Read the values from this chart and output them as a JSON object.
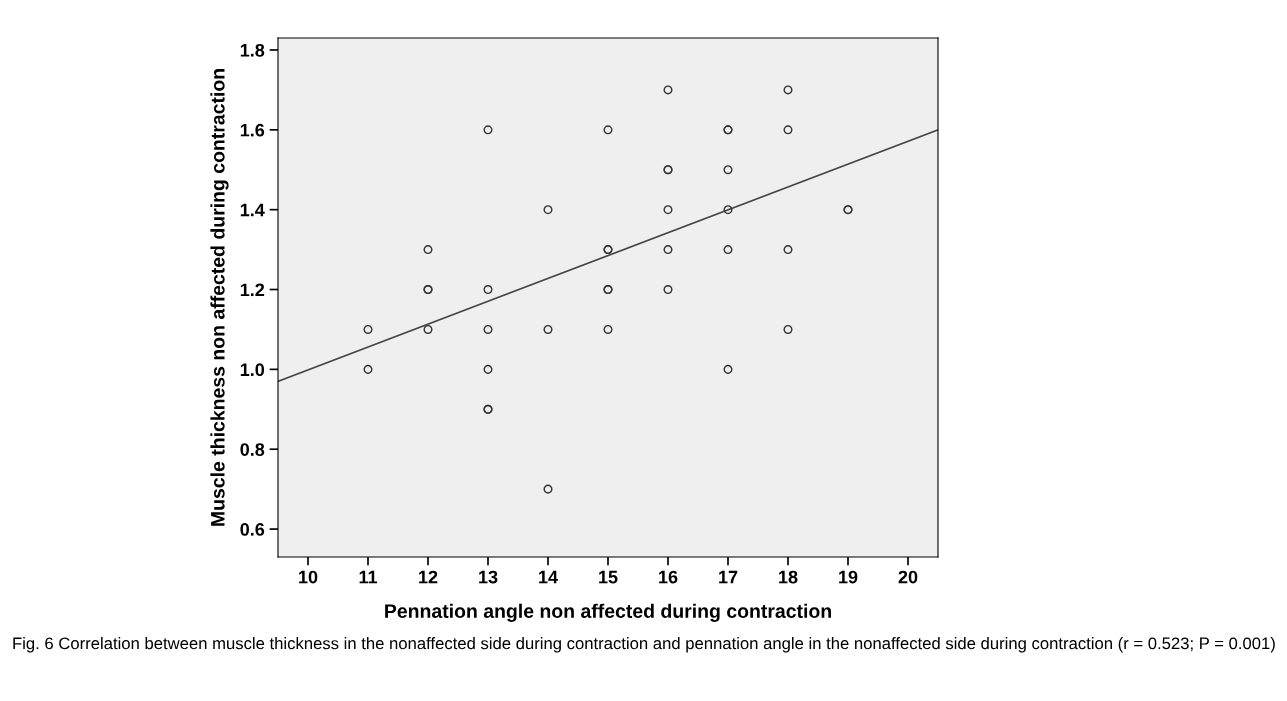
{
  "chart_data": {
    "type": "scatter",
    "xlabel": "Pennation angle non affected during contraction",
    "ylabel": "Muscle thickness non affected during contraction",
    "xlim": [
      9.5,
      20.5
    ],
    "ylim": [
      0.53,
      1.83
    ],
    "xticks": [
      10,
      11,
      12,
      13,
      14,
      15,
      16,
      17,
      18,
      19,
      20
    ],
    "yticks": [
      0.6,
      0.8,
      {
        "value": 1,
        "label": "1.0"
      },
      1.2,
      1.4,
      1.6,
      1.8
    ],
    "grid": false,
    "series": [
      {
        "marker": "circle",
        "color": "#333333",
        "x": [
          11,
          11,
          12,
          12,
          12,
          12,
          13,
          13,
          13,
          13,
          13,
          13,
          14,
          14,
          14,
          15,
          15,
          15,
          15,
          15,
          15,
          16,
          16,
          16,
          16,
          16,
          16,
          17,
          17,
          17,
          17,
          17,
          17,
          18,
          18,
          18,
          18,
          19,
          19
        ],
        "values": [
          1.1,
          1.0,
          1.3,
          1.2,
          1.2,
          1.1,
          1.6,
          1.2,
          1.1,
          1.0,
          0.9,
          0.9,
          1.4,
          1.1,
          0.7,
          1.6,
          1.3,
          1.3,
          1.2,
          1.2,
          1.1,
          1.7,
          1.5,
          1.5,
          1.4,
          1.3,
          1.2,
          1.6,
          1.6,
          1.5,
          1.4,
          1.3,
          1.0,
          1.7,
          1.6,
          1.3,
          1.1,
          1.4,
          1.4
        ]
      },
      {
        "type": "line",
        "color": "#444444",
        "x": [
          9.5,
          20.5
        ],
        "values": [
          0.97,
          1.6
        ]
      }
    ],
    "annotations": [
      "Fig. 6 Correlation between muscle thickness in the nonaffected side during contraction and pennation angle in the nonaffected side during contraction (r = 0.523; P = 0.001)"
    ]
  }
}
